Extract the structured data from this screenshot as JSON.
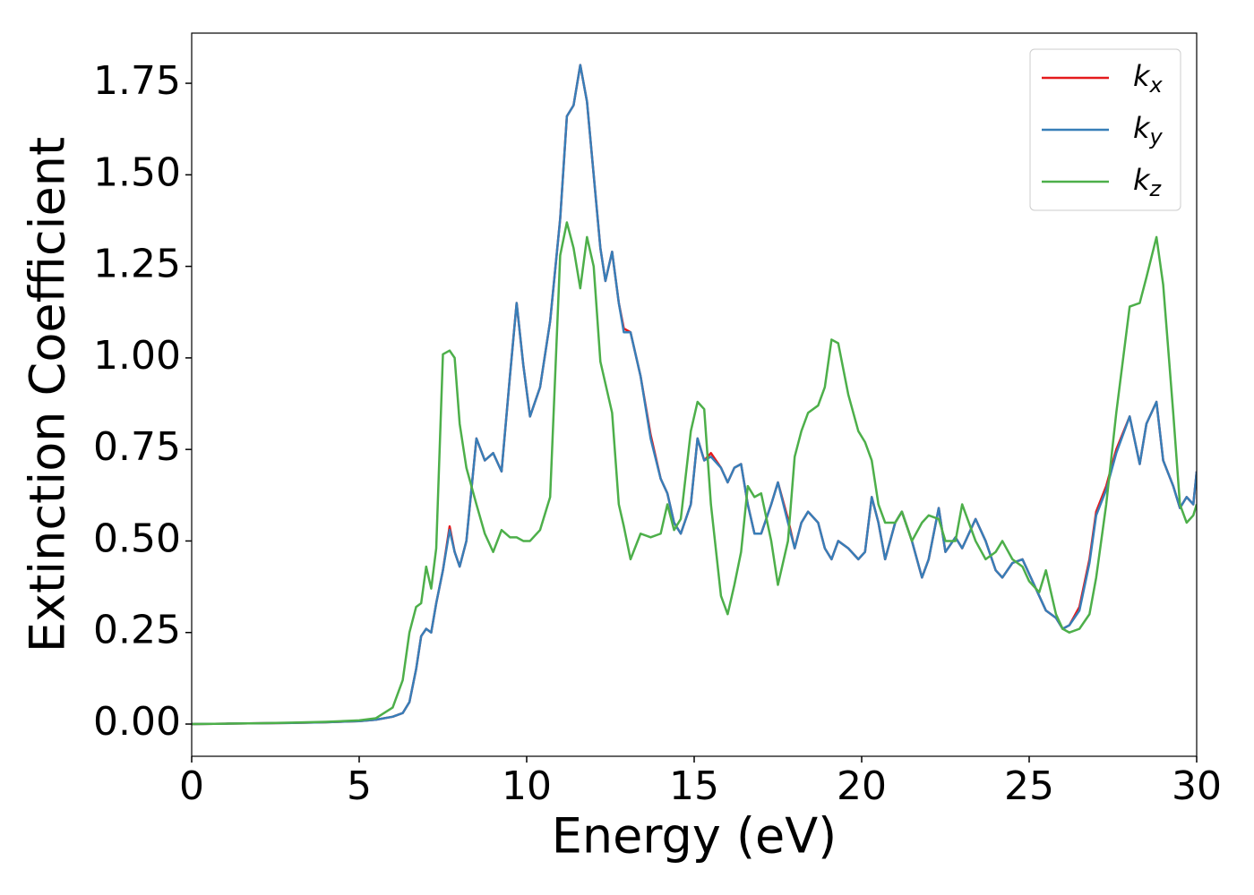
{
  "chart_data": {
    "type": "line",
    "xlabel": "Energy (eV)",
    "ylabel": "Extinction Coefficient",
    "x": [
      0,
      1,
      2,
      3,
      4,
      5,
      5.5,
      6,
      6.3,
      6.5,
      6.7,
      6.85,
      7.0,
      7.15,
      7.3,
      7.5,
      7.7,
      7.85,
      8.0,
      8.2,
      8.5,
      8.75,
      9.0,
      9.25,
      9.5,
      9.7,
      9.9,
      10.1,
      10.4,
      10.7,
      11.0,
      11.2,
      11.4,
      11.6,
      11.8,
      12.0,
      12.2,
      12.35,
      12.55,
      12.75,
      12.9,
      13.1,
      13.4,
      13.7,
      14.0,
      14.2,
      14.4,
      14.6,
      14.9,
      15.1,
      15.3,
      15.5,
      15.8,
      16.0,
      16.2,
      16.4,
      16.6,
      16.8,
      17.0,
      17.3,
      17.5,
      17.8,
      18.0,
      18.2,
      18.4,
      18.7,
      18.9,
      19.1,
      19.3,
      19.6,
      19.9,
      20.1,
      20.3,
      20.5,
      20.7,
      21.0,
      21.2,
      21.5,
      21.8,
      22.0,
      22.3,
      22.5,
      22.8,
      23.0,
      23.4,
      23.7,
      24.0,
      24.2,
      24.5,
      24.8,
      25.0,
      25.3,
      25.5,
      25.8,
      26.0,
      26.2,
      26.5,
      26.8,
      27.0,
      27.3,
      27.6,
      28.0,
      28.3,
      28.5,
      28.8,
      29.0,
      29.3,
      29.5,
      29.7,
      29.9,
      30.0
    ],
    "series": [
      {
        "name": "kx",
        "color": "#e41a1c",
        "values": [
          0,
          0.001,
          0.002,
          0.003,
          0.005,
          0.008,
          0.012,
          0.02,
          0.03,
          0.06,
          0.15,
          0.24,
          0.26,
          0.25,
          0.33,
          0.42,
          0.54,
          0.47,
          0.43,
          0.5,
          0.78,
          0.72,
          0.74,
          0.69,
          0.95,
          1.15,
          0.98,
          0.84,
          0.92,
          1.1,
          1.38,
          1.66,
          1.69,
          1.8,
          1.7,
          1.5,
          1.3,
          1.21,
          1.29,
          1.15,
          1.08,
          1.07,
          0.95,
          0.79,
          0.67,
          0.63,
          0.55,
          0.52,
          0.6,
          0.78,
          0.72,
          0.74,
          0.7,
          0.66,
          0.7,
          0.71,
          0.6,
          0.52,
          0.52,
          0.6,
          0.66,
          0.56,
          0.48,
          0.55,
          0.58,
          0.55,
          0.48,
          0.45,
          0.5,
          0.48,
          0.45,
          0.47,
          0.62,
          0.55,
          0.45,
          0.55,
          0.58,
          0.5,
          0.4,
          0.45,
          0.59,
          0.47,
          0.51,
          0.48,
          0.56,
          0.5,
          0.42,
          0.4,
          0.44,
          0.45,
          0.41,
          0.35,
          0.31,
          0.29,
          0.26,
          0.27,
          0.32,
          0.45,
          0.58,
          0.65,
          0.75,
          0.84,
          0.71,
          0.82,
          0.88,
          0.72,
          0.65,
          0.59,
          0.62,
          0.6,
          0.69
        ]
      },
      {
        "name": "ky",
        "color": "#377eb8",
        "values": [
          0,
          0.001,
          0.002,
          0.003,
          0.005,
          0.008,
          0.012,
          0.02,
          0.03,
          0.06,
          0.15,
          0.24,
          0.26,
          0.25,
          0.33,
          0.42,
          0.53,
          0.47,
          0.43,
          0.5,
          0.78,
          0.72,
          0.74,
          0.69,
          0.95,
          1.15,
          0.98,
          0.84,
          0.92,
          1.1,
          1.38,
          1.66,
          1.69,
          1.8,
          1.7,
          1.5,
          1.3,
          1.21,
          1.29,
          1.15,
          1.07,
          1.07,
          0.95,
          0.78,
          0.67,
          0.63,
          0.55,
          0.52,
          0.6,
          0.78,
          0.72,
          0.73,
          0.7,
          0.66,
          0.7,
          0.71,
          0.6,
          0.52,
          0.52,
          0.6,
          0.66,
          0.55,
          0.48,
          0.55,
          0.58,
          0.55,
          0.48,
          0.45,
          0.5,
          0.48,
          0.45,
          0.47,
          0.62,
          0.55,
          0.45,
          0.55,
          0.58,
          0.5,
          0.4,
          0.45,
          0.59,
          0.47,
          0.51,
          0.48,
          0.56,
          0.5,
          0.42,
          0.4,
          0.44,
          0.45,
          0.41,
          0.35,
          0.31,
          0.29,
          0.26,
          0.27,
          0.31,
          0.44,
          0.57,
          0.64,
          0.74,
          0.84,
          0.71,
          0.82,
          0.88,
          0.72,
          0.65,
          0.59,
          0.62,
          0.6,
          0.69
        ]
      },
      {
        "name": "kz",
        "color": "#4daf4a",
        "values": [
          0,
          0.001,
          0.002,
          0.004,
          0.006,
          0.01,
          0.016,
          0.045,
          0.12,
          0.25,
          0.32,
          0.33,
          0.43,
          0.37,
          0.48,
          1.01,
          1.02,
          1.0,
          0.82,
          0.7,
          0.6,
          0.52,
          0.47,
          0.53,
          0.51,
          0.51,
          0.5,
          0.5,
          0.53,
          0.62,
          1.28,
          1.37,
          1.3,
          1.19,
          1.33,
          1.25,
          0.99,
          0.93,
          0.85,
          0.6,
          0.54,
          0.45,
          0.52,
          0.51,
          0.52,
          0.6,
          0.53,
          0.56,
          0.8,
          0.88,
          0.86,
          0.6,
          0.35,
          0.3,
          0.38,
          0.47,
          0.65,
          0.62,
          0.63,
          0.5,
          0.38,
          0.5,
          0.73,
          0.8,
          0.85,
          0.87,
          0.92,
          1.05,
          1.04,
          0.9,
          0.8,
          0.77,
          0.72,
          0.6,
          0.55,
          0.55,
          0.58,
          0.5,
          0.55,
          0.57,
          0.56,
          0.5,
          0.5,
          0.6,
          0.5,
          0.45,
          0.47,
          0.5,
          0.45,
          0.43,
          0.39,
          0.36,
          0.42,
          0.3,
          0.26,
          0.25,
          0.26,
          0.3,
          0.4,
          0.6,
          0.85,
          1.14,
          1.15,
          1.22,
          1.33,
          1.2,
          0.85,
          0.6,
          0.55,
          0.57,
          0.6
        ]
      }
    ],
    "xlim": [
      0,
      30
    ],
    "xticks": [
      0,
      5,
      10,
      15,
      20,
      25,
      30
    ],
    "ylim": [
      -0.088,
      1.887
    ],
    "yticks": [
      {
        "value": 0,
        "label": "0.00"
      },
      {
        "value": 0.25,
        "label": "0.25"
      },
      {
        "value": 0.5,
        "label": "0.50"
      },
      {
        "value": 0.75,
        "label": "0.75"
      },
      {
        "value": 1,
        "label": "1.00"
      },
      {
        "value": 1.25,
        "label": "1.25"
      },
      {
        "value": 1.5,
        "label": "1.50"
      },
      {
        "value": 1.75,
        "label": "1.75"
      }
    ],
    "grid": false,
    "legend": "upper right"
  }
}
